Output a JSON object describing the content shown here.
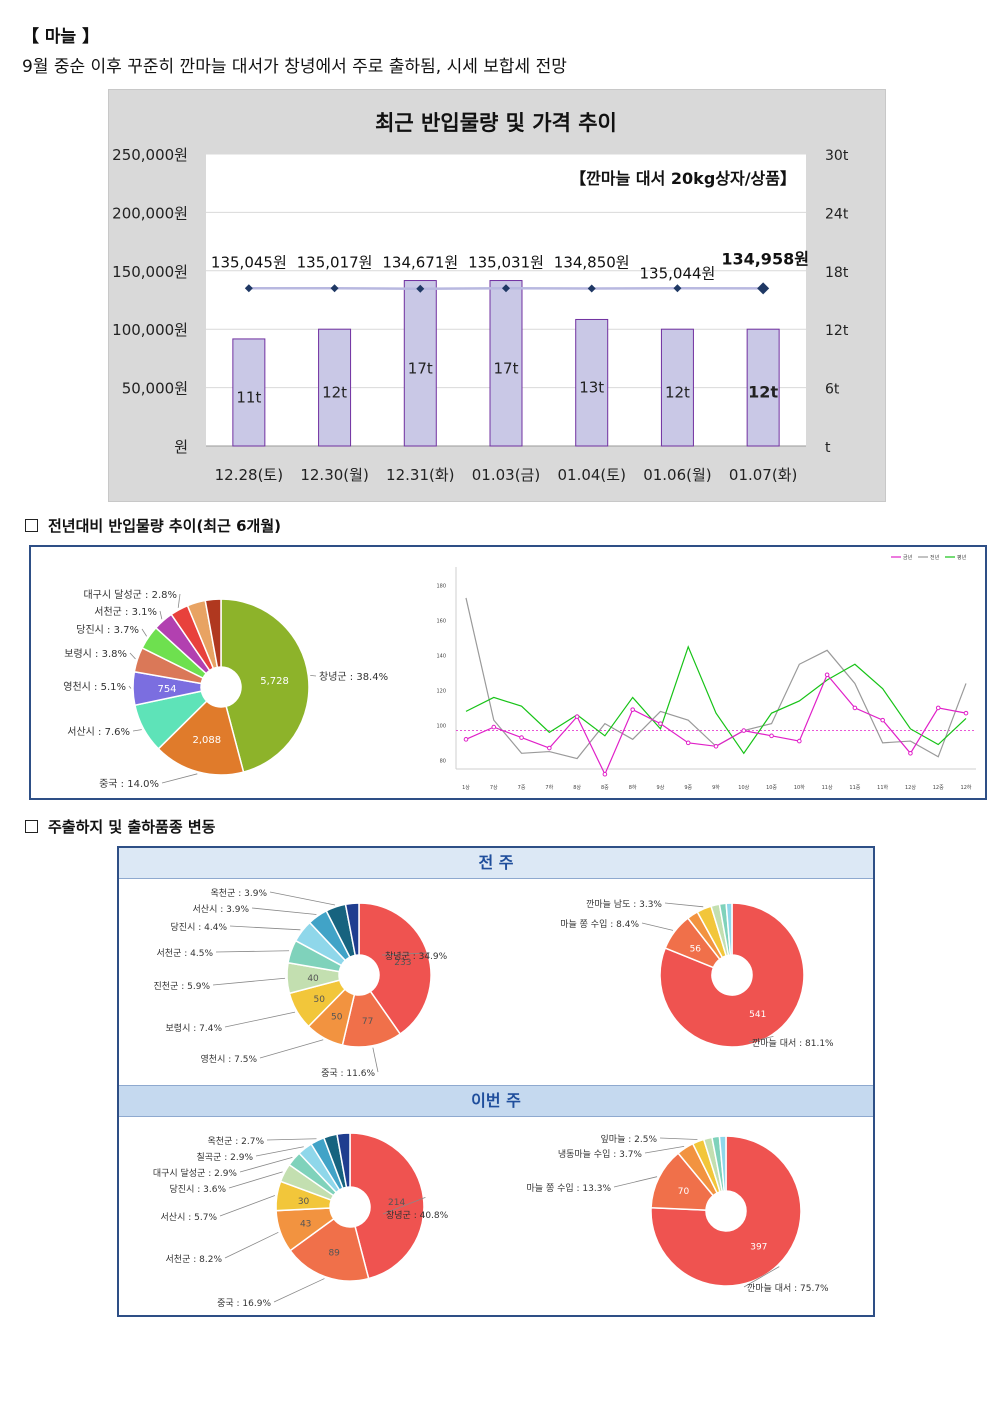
{
  "header": {
    "title": "【 마늘 】",
    "summary": "9월 중순 이후 꾸준히 깐마늘 대서가 창녕에서 주로 출하됨, 시세 보합세 전망"
  },
  "chart_data": [
    {
      "type": "bar",
      "title": "최근 반입물량 및 가격 추이",
      "subtitle": "【깐마늘 대서 20kg상자/상품】",
      "categories": [
        "12.28(토)",
        "12.30(월)",
        "12.31(화)",
        "01.03(금)",
        "01.04(토)",
        "01.06(월)",
        "01.07(화)"
      ],
      "series": [
        {
          "type": "bar",
          "axis": "right",
          "values": [
            11,
            12,
            17,
            17,
            13,
            12,
            12
          ],
          "value_labels": [
            "11t",
            "12t",
            "17t",
            "17t",
            "13t",
            "12t",
            "12t"
          ],
          "color": "#c9c8e6"
        },
        {
          "type": "line",
          "axis": "left",
          "values": [
            135045,
            135017,
            134671,
            135031,
            134850,
            135044,
            134958
          ],
          "value_labels": [
            "135,045원",
            "135,017원",
            "134,671원",
            "135,031원",
            "134,850원",
            "135,044원",
            "134,958원"
          ],
          "color": "#1f3864"
        }
      ],
      "y_left_ticks": [
        "250,000원",
        "200,000원",
        "150,000원",
        "100,000원",
        "50,000원",
        "원"
      ],
      "y_right_ticks": [
        "30t",
        "24t",
        "18t",
        "12t",
        "6t",
        "t"
      ],
      "ylim_left": [
        0,
        250000
      ],
      "ylim_right": [
        0,
        30
      ],
      "grid": true
    },
    {
      "type": "pie",
      "slices": [
        {
          "label": "창녕군 : 38.4%",
          "value": 38.4,
          "inner": "5,728",
          "color": "#8db32a"
        },
        {
          "label": "중국 : 14.0%",
          "value": 14.0,
          "inner": "2,088",
          "color": "#e07b2b"
        },
        {
          "label": "서산시 : 7.6%",
          "value": 7.6,
          "inner": "",
          "color": "#5ee3b8"
        },
        {
          "label": "영천시 : 5.1%",
          "value": 5.1,
          "inner": "754",
          "color": "#7b6ee0"
        },
        {
          "label": "보령시 : 3.8%",
          "value": 3.8,
          "inner": "",
          "color": "#da7858"
        },
        {
          "label": "당진시 : 3.7%",
          "value": 3.7,
          "inner": "",
          "color": "#6ee04f"
        },
        {
          "label": "서천군 : 3.1%",
          "value": 3.1,
          "inner": "",
          "color": "#b240b0"
        },
        {
          "label": "대구시 달성군 : 2.8%",
          "value": 2.8,
          "inner": "",
          "color": "#e8413c"
        },
        {
          "label": "",
          "value": 2.8,
          "inner": "",
          "color": "#e8a363"
        },
        {
          "label": "",
          "value": 2.4,
          "inner": "",
          "color": "#b0381f"
        }
      ]
    },
    {
      "type": "line",
      "legend": [
        "금년",
        "전년",
        "평년"
      ],
      "categories": [
        "1상",
        "7상",
        "7중",
        "7하",
        "8상",
        "8중",
        "8하",
        "9상",
        "9중",
        "9하",
        "10상",
        "10중",
        "10하",
        "11상",
        "11중",
        "11하",
        "12상",
        "12중",
        "12하"
      ],
      "y_ticks": [
        180,
        160,
        140,
        120,
        100,
        80
      ],
      "ylim": [
        75,
        185
      ],
      "reference_line": 97,
      "series": [
        {
          "name": "금년",
          "color": "#e020c8",
          "values": [
            92,
            99,
            93,
            87,
            105,
            72,
            109,
            101,
            90,
            88,
            97,
            94,
            91,
            129,
            110,
            103,
            84,
            110,
            107
          ]
        },
        {
          "name": "전년",
          "color": "#9a9a9a",
          "values": [
            173,
            103,
            84,
            85,
            81,
            101,
            92,
            108,
            103,
            88,
            97,
            101,
            135,
            143,
            124,
            90,
            91,
            82,
            124
          ]
        },
        {
          "name": "평년",
          "color": "#17c317",
          "values": [
            108,
            116,
            111,
            96,
            106,
            94,
            116,
            98,
            145,
            107,
            84,
            107,
            114,
            126,
            135,
            121,
            98,
            89,
            104
          ]
        }
      ]
    },
    {
      "type": "pie",
      "week": "전 주",
      "slices": [
        {
          "label": "창녕군 : 34.9%",
          "value": 34.9,
          "inner": "233",
          "color": "#ef5350"
        },
        {
          "label": "중국 : 11.6%",
          "value": 11.6,
          "inner": "77",
          "color": "#f0704a"
        },
        {
          "label": "영천시 : 7.5%",
          "value": 7.5,
          "inner": "50",
          "color": "#f29340"
        },
        {
          "label": "보령시 : 7.4%",
          "value": 7.4,
          "inner": "50",
          "color": "#f2c63a"
        },
        {
          "label": "진천군 : 5.9%",
          "value": 5.9,
          "inner": "40",
          "color": "#c3dfb0"
        },
        {
          "label": "서천군 : 4.5%",
          "value": 4.5,
          "inner": "",
          "color": "#7fd2bb"
        },
        {
          "label": "당진시 : 4.4%",
          "value": 4.4,
          "inner": "",
          "color": "#8fd7ea"
        },
        {
          "label": "서산시 : 3.9%",
          "value": 3.9,
          "inner": "",
          "color": "#41a3c7"
        },
        {
          "label": "옥천군 : 3.9%",
          "value": 3.9,
          "inner": "",
          "color": "#17637f"
        },
        {
          "label": "",
          "value": 2.6,
          "inner": "",
          "color": "#1f3d8f"
        }
      ]
    },
    {
      "type": "pie",
      "week": "전 주",
      "slices": [
        {
          "label": "깐마늘 대서 : 81.1%",
          "value": 81.1,
          "inner": "541",
          "color": "#ef5350"
        },
        {
          "label": "마늘 쫑 수입 : 8.4%",
          "value": 8.4,
          "inner": "56",
          "color": "#f0704a"
        },
        {
          "label": "",
          "value": 2.5,
          "inner": "",
          "color": "#f29340"
        },
        {
          "label": "깐마늘 남도 : 3.3%",
          "value": 3.3,
          "inner": "",
          "color": "#f2c63a"
        },
        {
          "label": "",
          "value": 1.9,
          "inner": "",
          "color": "#c3dfb0"
        },
        {
          "label": "",
          "value": 1.5,
          "inner": "",
          "color": "#7fd2bb"
        },
        {
          "label": "",
          "value": 1.3,
          "inner": "",
          "color": "#8fd7ea"
        }
      ]
    },
    {
      "type": "pie",
      "week": "이번 주",
      "slices": [
        {
          "label": "창녕군 : 40.8%",
          "value": 40.8,
          "inner": "214",
          "color": "#ef5350"
        },
        {
          "label": "중국 : 16.9%",
          "value": 16.9,
          "inner": "89",
          "color": "#f0704a"
        },
        {
          "label": "서천군 : 8.2%",
          "value": 8.2,
          "inner": "43",
          "color": "#f29340"
        },
        {
          "label": "서산시 : 5.7%",
          "value": 5.7,
          "inner": "30",
          "color": "#f2c63a"
        },
        {
          "label": "당진시 : 3.6%",
          "value": 3.6,
          "inner": "",
          "color": "#c3dfb0"
        },
        {
          "label": "대구시 달성군 : 2.9%",
          "value": 2.9,
          "inner": "",
          "color": "#7fd2bb"
        },
        {
          "label": "칠곡군 : 2.9%",
          "value": 2.9,
          "inner": "",
          "color": "#8fd7ea"
        },
        {
          "label": "옥천군 : 2.7%",
          "value": 2.7,
          "inner": "",
          "color": "#41a3c7"
        },
        {
          "label": "",
          "value": 2.6,
          "inner": "",
          "color": "#17637f"
        },
        {
          "label": "",
          "value": 2.5,
          "inner": "",
          "color": "#1f3d8f"
        }
      ]
    },
    {
      "type": "pie",
      "week": "이번 주",
      "slices": [
        {
          "label": "깐마늘 대서 : 75.7%",
          "value": 75.7,
          "inner": "397",
          "color": "#ef5350"
        },
        {
          "label": "마늘 쫑 수입 : 13.3%",
          "value": 13.3,
          "inner": "70",
          "color": "#f0704a"
        },
        {
          "label": "냉동마늘 수입 : 3.7%",
          "value": 3.7,
          "inner": "",
          "color": "#f29340"
        },
        {
          "label": "잎마늘 : 2.5%",
          "value": 2.5,
          "inner": "",
          "color": "#f2c63a"
        },
        {
          "label": "",
          "value": 1.8,
          "inner": "",
          "color": "#c3dfb0"
        },
        {
          "label": "",
          "value": 1.6,
          "inner": "",
          "color": "#7fd2bb"
        },
        {
          "label": "",
          "value": 1.4,
          "inner": "",
          "color": "#8fd7ea"
        }
      ]
    }
  ],
  "sections": {
    "yoy_title": "전년대비 반입물량 추이(최근 6개월)",
    "origin_title": "주출하지 및 출하품종 변동",
    "last_week": "전 주",
    "this_week": "이번 주"
  }
}
